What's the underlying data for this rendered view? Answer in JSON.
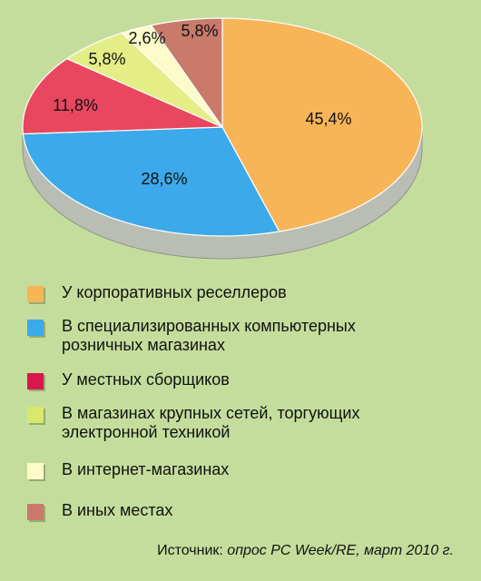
{
  "chart_data": {
    "type": "pie",
    "title": "",
    "slices": [
      {
        "label": "У корпоративных реселлеров",
        "value": 45.4,
        "value_label": "45,4%",
        "color": "#f7b558"
      },
      {
        "label": "В специализированных компьютерных\nрозничных магазинах",
        "value": 28.6,
        "value_label": "28,6%",
        "color": "#3ca9ea"
      },
      {
        "label": "У местных сборщиков",
        "value": 11.8,
        "value_label": "11,8%",
        "color": "#e8475f"
      },
      {
        "label": "В магазинах крупных сетей, торгующих\nэлектронной техникой",
        "value": 5.8,
        "value_label": "5,8%",
        "color": "#e4ee86"
      },
      {
        "label": "В интернет-магазинах",
        "value": 2.6,
        "value_label": "2,6%",
        "color": "#fcfbc9"
      },
      {
        "label": "В иных местах",
        "value": 5.8,
        "value_label": "5,8%",
        "color": "#c97a6a"
      }
    ],
    "legend_swatch_colors": [
      "#f7b558",
      "#3ca9ea",
      "#d9164d",
      "#d8e86a",
      "#fcfbc9",
      "#c97a6a"
    ],
    "side_color": "#b9bdb4"
  },
  "source": {
    "prefix": "Источник: ",
    "italic": "опрос PC Week/RE, март 2010 г."
  }
}
